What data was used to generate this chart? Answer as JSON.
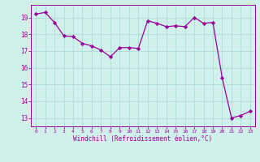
{
  "x": [
    0,
    1,
    2,
    3,
    4,
    5,
    6,
    7,
    8,
    9,
    10,
    11,
    12,
    13,
    14,
    15,
    16,
    17,
    18,
    19,
    20,
    21,
    22,
    23
  ],
  "y": [
    19.2,
    19.3,
    18.7,
    17.9,
    17.85,
    17.45,
    17.3,
    17.05,
    16.65,
    17.2,
    17.2,
    17.15,
    18.8,
    18.65,
    18.45,
    18.5,
    18.45,
    19.0,
    18.65,
    18.7,
    15.4,
    13.0,
    13.15,
    13.4
  ],
  "line_color": "#990099",
  "marker": "D",
  "marker_size": 2.2,
  "bg_color": "#cff0eb",
  "grid_color": "#aaddd6",
  "xlabel": "Windchill (Refroidissement éolien,°C)",
  "xlabel_color": "#990099",
  "tick_color": "#990099",
  "yticks": [
    13,
    14,
    15,
    16,
    17,
    18,
    19
  ],
  "ylim": [
    12.5,
    19.75
  ],
  "xlim": [
    -0.5,
    23.5
  ]
}
